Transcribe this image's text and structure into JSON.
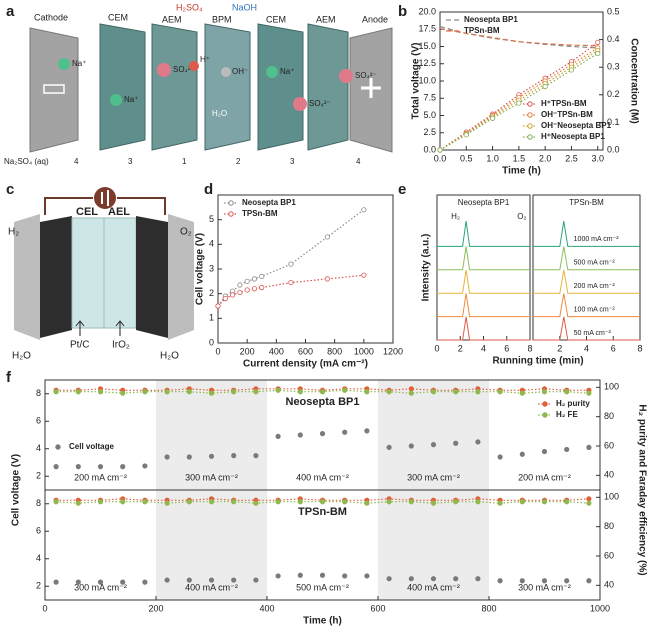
{
  "panel_labels": [
    "a",
    "b",
    "c",
    "d",
    "e",
    "f"
  ],
  "diagram_a": {
    "cathode": "Cathode",
    "anode": "Anode",
    "membranes": [
      "CEM",
      "AEM",
      "BPM",
      "CEM",
      "AEM"
    ],
    "acid": "H₂SO₄",
    "base": "NaOH",
    "ions": [
      "Na⁺",
      "Na⁺",
      "SO₄²⁻",
      "H⁺",
      "OH⁻",
      "Na⁺",
      "SO₄²⁻",
      "SO₄²⁻"
    ],
    "water": "H₂O",
    "feed": "Na₂SO₄ (aq)",
    "compartments": [
      "4",
      "3",
      "1",
      "2",
      "3",
      "4"
    ]
  },
  "diagram_c": {
    "cel": "CEL",
    "ael": "AEL",
    "h2": "H₂",
    "o2": "O₂",
    "cathode": "Pt/C",
    "anode": "IrO₂",
    "water": [
      "H₂O",
      "H₂O"
    ]
  },
  "chart_data": [
    {
      "type": "line",
      "xlabel": "Time (h)",
      "ylabel": "Total voltage (V)",
      "y2label": "Concentration (M)",
      "x": [
        0,
        0.5,
        1,
        1.5,
        2,
        2.5,
        3
      ],
      "xlim": [
        0,
        3.1
      ],
      "xticks": [
        {
          "value": 0,
          "label": "0.0"
        },
        0.5,
        {
          "value": 1,
          "label": "1.0"
        },
        1.5,
        {
          "value": 2,
          "label": "2.0"
        },
        2.5,
        {
          "value": 3,
          "label": "3.0"
        }
      ],
      "ylim": [
        0,
        20
      ],
      "yticks": [
        {
          "value": 0,
          "label": "0.0"
        },
        2.5,
        {
          "value": 5,
          "label": "5.0"
        },
        7.5,
        {
          "value": 10,
          "label": "10.0"
        },
        12.5,
        {
          "value": 15,
          "label": "15.0"
        },
        17.5,
        {
          "value": 20,
          "label": "20.0"
        }
      ],
      "y2lim": [
        0,
        0.5
      ],
      "y2ticks": [
        {
          "value": 0,
          "label": "0.0"
        },
        0.1,
        0.2,
        0.3,
        0.4,
        0.5
      ],
      "legend": "upper-left",
      "legend2": "lower-right",
      "series": [
        {
          "name": "Neosepta BP1",
          "color": "#8a8a8a",
          "style": "dashed",
          "values": [
            17.9,
            16.9,
            16.2,
            15.7,
            15.3,
            15.0,
            14.8
          ]
        },
        {
          "name": "TPSn-BM",
          "color": "#d9734a",
          "style": "dashed",
          "values": [
            17.6,
            16.9,
            16.3,
            15.7,
            15.4,
            15.2,
            15.1
          ]
        },
        {
          "name": "H⁺TPSn-BM",
          "color": "#d9534f",
          "style": "dotted",
          "marker": "open",
          "axis": "y2",
          "values": [
            0,
            0.065,
            0.13,
            0.2,
            0.26,
            0.32,
            0.39
          ]
        },
        {
          "name": "OH⁻TPSn-BM",
          "color": "#e07b39",
          "style": "dotted",
          "marker": "open",
          "axis": "y2",
          "values": [
            0,
            0.06,
            0.125,
            0.19,
            0.25,
            0.31,
            0.37
          ]
        },
        {
          "name": "OH⁻Neosepta BP1",
          "color": "#c9a227",
          "style": "dotted",
          "marker": "open",
          "axis": "y2",
          "values": [
            0,
            0.058,
            0.12,
            0.18,
            0.24,
            0.3,
            0.36
          ]
        },
        {
          "name": "H⁺Neosepta BP1",
          "color": "#7fae4e",
          "style": "dotted",
          "marker": "open",
          "axis": "y2",
          "values": [
            0,
            0.055,
            0.115,
            0.17,
            0.23,
            0.29,
            0.35
          ]
        }
      ]
    },
    {
      "type": "line",
      "xlabel": "Current density (mA cm⁻²)",
      "ylabel": "Cell voltage (V)",
      "x": [
        0,
        50,
        100,
        150,
        200,
        250,
        300,
        500,
        750,
        1000
      ],
      "xlim": [
        0,
        1200
      ],
      "xticks": [
        0,
        200,
        400,
        600,
        800,
        1000,
        1200
      ],
      "ylim": [
        0,
        6
      ],
      "yticks": [
        0,
        1,
        2,
        3,
        4,
        5
      ],
      "legend": "upper-left",
      "series": [
        {
          "name": "Neosepta BP1",
          "color": "#8a8a8a",
          "style": "dotted",
          "marker": "open",
          "values": [
            1.5,
            1.9,
            2.1,
            2.35,
            2.5,
            2.6,
            2.7,
            3.2,
            4.3,
            5.4
          ]
        },
        {
          "name": "TPSn-BM",
          "color": "#d9534f",
          "style": "dotted",
          "marker": "open",
          "values": [
            1.5,
            1.8,
            1.95,
            2.05,
            2.15,
            2.2,
            2.25,
            2.45,
            2.6,
            2.75
          ]
        }
      ]
    },
    {
      "type": "line",
      "title": "Neosepta BP1",
      "xlabel": "Running time (min)",
      "ylabel": "Intensity (a.u.)",
      "offset": true,
      "x": [
        0,
        2.2,
        2.5,
        2.8,
        8
      ],
      "xlim": [
        0,
        8
      ],
      "xticks": [
        0,
        2,
        4,
        6,
        8
      ],
      "ylim": [
        0,
        1
      ],
      "annotations": [
        {
          "text": "H₂",
          "x": 1.6
        },
        {
          "text": "O₂",
          "x": 7.3
        }
      ],
      "series": [
        {
          "color": "#2aa37a",
          "style": "solid",
          "values": [
            0,
            0,
            1.2,
            0,
            0
          ]
        },
        {
          "color": "#8cbf5a",
          "style": "solid",
          "values": [
            0,
            0,
            1.1,
            0,
            0
          ]
        },
        {
          "color": "#e8b43a",
          "style": "solid",
          "values": [
            0,
            0,
            1.1,
            0,
            0
          ]
        },
        {
          "color": "#f08a3c",
          "style": "solid",
          "values": [
            0,
            0,
            1.1,
            0,
            0
          ]
        },
        {
          "color": "#e05a4a",
          "style": "solid",
          "values": [
            0,
            0,
            1.1,
            0,
            0
          ]
        }
      ]
    },
    {
      "type": "line",
      "title": "TPSn-BM",
      "offset": true,
      "trace_labels": true,
      "x": [
        0,
        2.0,
        2.3,
        2.6,
        8
      ],
      "xlim": [
        0,
        8
      ],
      "xticks": [
        2,
        4,
        6,
        8
      ],
      "ylim": [
        0,
        1
      ],
      "series": [
        {
          "name": "1000 mA cm⁻²",
          "color": "#2aa37a",
          "style": "solid",
          "values": [
            0,
            0,
            1.2,
            0,
            0
          ]
        },
        {
          "name": "500 mA cm⁻²",
          "color": "#8cbf5a",
          "style": "solid",
          "values": [
            0,
            0,
            1.1,
            0,
            0
          ]
        },
        {
          "name": "200 mA cm⁻²",
          "color": "#e8b43a",
          "style": "solid",
          "values": [
            0,
            0,
            1.1,
            0,
            0
          ]
        },
        {
          "name": "100 mA cm⁻²",
          "color": "#f08a3c",
          "style": "solid",
          "values": [
            0,
            0,
            1.1,
            0,
            0
          ]
        },
        {
          "name": "50 mA cm⁻²",
          "color": "#e05a4a",
          "style": "solid",
          "values": [
            0,
            0,
            1.1,
            0,
            0
          ]
        }
      ]
    },
    {
      "type": "scatter",
      "title": "Neosepta BP1",
      "ylabel": "Cell voltage (V)",
      "y2label": "H₂ purity and Faraday efficiency (%)",
      "x": [
        20,
        60,
        100,
        140,
        180,
        220,
        260,
        300,
        340,
        380,
        420,
        460,
        500,
        540,
        580,
        620,
        660,
        700,
        740,
        780,
        820,
        860,
        900,
        940,
        980
      ],
      "xlim": [
        0,
        1000
      ],
      "ylim": [
        1,
        9
      ],
      "yticks": [
        2,
        4,
        6,
        8
      ],
      "y2lim": [
        30,
        105
      ],
      "y2ticks": [
        40,
        60,
        80,
        100
      ],
      "legend": "middle-left",
      "legend2": "middle-right",
      "segments": [
        {
          "label": "200 mA cm⁻²",
          "start": 0,
          "end": 200
        },
        {
          "label": "300 mA cm⁻²",
          "start": 200,
          "end": 400
        },
        {
          "label": "400 mA cm⁻²",
          "start": 400,
          "end": 600
        },
        {
          "label": "300 mA cm⁻²",
          "start": 600,
          "end": 800
        },
        {
          "label": "200 mA cm⁻²",
          "start": 800,
          "end": 1000
        }
      ],
      "series": [
        {
          "name": "Cell voltage",
          "color": "#7a7a7a",
          "marker": "filled",
          "values": [
            2.7,
            2.7,
            2.7,
            2.7,
            2.75,
            3.4,
            3.4,
            3.45,
            3.5,
            3.5,
            4.9,
            5.0,
            5.1,
            5.2,
            5.3,
            4.1,
            4.2,
            4.3,
            4.4,
            4.5,
            3.4,
            3.6,
            3.8,
            3.95,
            4.1
          ]
        },
        {
          "name": "H₂ purity",
          "color": "#e0603a",
          "style": "dotted",
          "marker": "filled",
          "axis": "y2",
          "values": [
            98,
            98,
            99,
            98,
            98,
            98,
            99,
            98,
            98,
            99,
            99,
            99,
            98,
            99,
            99,
            98,
            99,
            98,
            98,
            99,
            98,
            98,
            99,
            98,
            98
          ]
        },
        {
          "name": "H₂ FE",
          "color": "#8fb84f",
          "style": "dotted",
          "marker": "filled",
          "axis": "y2",
          "values": [
            97,
            97,
            97,
            96,
            97,
            97,
            97,
            96,
            97,
            97,
            98,
            97,
            97,
            98,
            97,
            97,
            96,
            97,
            97,
            97,
            97,
            96,
            97,
            97,
            96
          ]
        }
      ]
    },
    {
      "type": "scatter",
      "title": "TPSn-BM",
      "xlabel": "Time (h)",
      "x": [
        20,
        60,
        100,
        140,
        180,
        220,
        260,
        300,
        340,
        380,
        420,
        460,
        500,
        540,
        580,
        620,
        660,
        700,
        740,
        780,
        820,
        860,
        900,
        940,
        980
      ],
      "xlim": [
        0,
        1000
      ],
      "xticks": [
        0,
        200,
        400,
        600,
        800,
        1000
      ],
      "ylim": [
        1,
        9
      ],
      "yticks": [
        2,
        4,
        6,
        8
      ],
      "y2lim": [
        30,
        105
      ],
      "y2ticks": [
        40,
        60,
        80,
        100
      ],
      "segments": [
        {
          "label": "300 mA cm⁻²",
          "start": 0,
          "end": 200
        },
        {
          "label": "400 mA cm⁻²",
          "start": 200,
          "end": 400
        },
        {
          "label": "500 mA cm⁻²",
          "start": 400,
          "end": 600
        },
        {
          "label": "400 mA cm⁻²",
          "start": 600,
          "end": 800
        },
        {
          "label": "300 mA cm⁻²",
          "start": 800,
          "end": 1000
        }
      ],
      "series": [
        {
          "color": "#7a7a7a",
          "marker": "filled",
          "values": [
            2.3,
            2.3,
            2.3,
            2.3,
            2.3,
            2.45,
            2.45,
            2.45,
            2.45,
            2.45,
            2.75,
            2.8,
            2.8,
            2.75,
            2.75,
            2.55,
            2.55,
            2.55,
            2.55,
            2.55,
            2.4,
            2.4,
            2.4,
            2.4,
            2.4
          ]
        },
        {
          "color": "#e0603a",
          "style": "dotted",
          "marker": "filled",
          "axis": "y2",
          "values": [
            98,
            98,
            98,
            99,
            98,
            98,
            98,
            99,
            98,
            98,
            98,
            99,
            98,
            98,
            98,
            99,
            98,
            98,
            98,
            99,
            98,
            98,
            98,
            98,
            99
          ]
        },
        {
          "color": "#8fb84f",
          "style": "dotted",
          "marker": "filled",
          "axis": "y2",
          "values": [
            97,
            96,
            97,
            97,
            97,
            96,
            97,
            97,
            97,
            96,
            97,
            97,
            97,
            97,
            96,
            97,
            97,
            96,
            97,
            97,
            96,
            97,
            97,
            97,
            96
          ]
        }
      ]
    }
  ]
}
